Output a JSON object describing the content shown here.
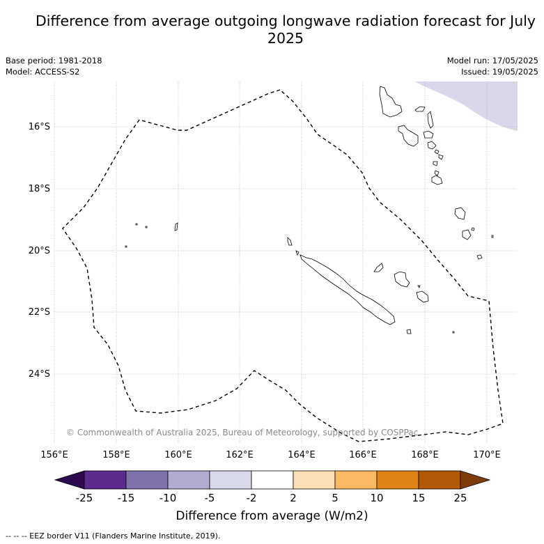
{
  "title": "Difference from average outgoing longwave radiation forecast for July 2025",
  "meta_left": {
    "base_period": "Base period: 1981-2018",
    "model": "Model: ACCESS-S2"
  },
  "meta_right": {
    "model_run": "Model run: 17/05/2025",
    "issued": "Issued: 19/05/2025"
  },
  "map": {
    "lat_ticks": [
      "16°S",
      "18°S",
      "20°S",
      "22°S",
      "24°S"
    ],
    "lon_ticks": [
      "156°E",
      "158°E",
      "160°E",
      "162°E",
      "164°E",
      "166°E",
      "168°E",
      "170°E"
    ],
    "copyright": "© Commonwealth of Australia 2025, Bureau of Meteorology, supported by COSPPac",
    "colors": {
      "border": "#000000",
      "grid": "#9a9a9a",
      "anomaly_fill": "#d8d8ea"
    }
  },
  "colorbar": {
    "title": "Difference from average (W/m2)",
    "labels": [
      "-25",
      "-15",
      "-10",
      "-5",
      "-2",
      "2",
      "5",
      "10",
      "15",
      "25"
    ],
    "colors": [
      "#2d0a4e",
      "#5b2a8c",
      "#8073ac",
      "#b2abd2",
      "#d8daeb",
      "#ffffff",
      "#fee0b6",
      "#fdb863",
      "#e08214",
      "#b35806",
      "#7f3b08"
    ]
  },
  "footer": "--  --  -- EEZ border V11 (Flanders Marine Institute, 2019)."
}
